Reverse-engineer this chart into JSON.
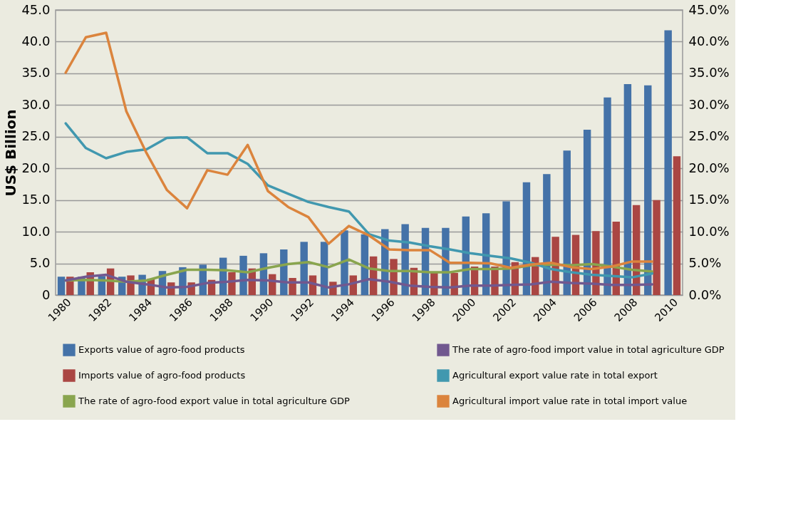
{
  "chart_data": {
    "type": "bar",
    "ylabel": "US$ Billion",
    "categories": [
      "1980",
      null,
      "1982",
      null,
      "1984",
      null,
      "1986",
      null,
      "1988",
      null,
      "1990",
      null,
      "1992",
      null,
      "1994",
      null,
      "1996",
      null,
      "1998",
      null,
      "2000",
      null,
      "2002",
      null,
      "2004",
      null,
      "2006",
      null,
      "2008",
      null,
      "2010"
    ],
    "series": [
      {
        "name": "Exports value of agro-food products",
        "color": "#4472a8",
        "values": [
          2.9,
          2.9,
          3.0,
          2.9,
          3.2,
          3.8,
          4.4,
          4.8,
          5.9,
          6.2,
          6.6,
          7.2,
          8.4,
          8.4,
          10.2,
          9.6,
          10.4,
          11.2,
          10.6,
          10.6,
          12.4,
          12.9,
          14.8,
          17.8,
          19.1,
          22.8,
          26.1,
          31.2,
          33.3,
          33.1,
          41.8
        ]
      },
      {
        "name": "Imports value of agro-food products",
        "color": "#aa4643",
        "values": [
          2.9,
          3.6,
          4.2,
          3.1,
          2.6,
          2.0,
          2.0,
          2.4,
          3.6,
          4.2,
          3.3,
          2.7,
          3.1,
          2.1,
          3.1,
          6.1,
          5.7,
          4.3,
          3.5,
          3.5,
          4.5,
          4.5,
          5.2,
          6.0,
          9.2,
          9.5,
          10.1,
          11.6,
          14.2,
          15.0,
          21.9
        ]
      },
      {
        "name": "The rate of agro-food export value in total agriculture GDP",
        "color": "#89a54e",
        "type": "line",
        "axis": "y2",
        "values": [
          2.3,
          2.4,
          2.3,
          2.1,
          2.3,
          3.2,
          4.0,
          4.0,
          3.9,
          3.6,
          4.3,
          4.9,
          5.2,
          4.4,
          5.6,
          4.2,
          3.8,
          3.8,
          3.6,
          3.6,
          4.1,
          4.1,
          4.2,
          4.7,
          4.8,
          4.7,
          4.9,
          4.5,
          4.0,
          3.7,
          null
        ]
      },
      {
        "name": "The rate of agro-food import value in total agriculture GDP",
        "color": "#71588f",
        "type": "line",
        "axis": "y2",
        "values": [
          2.3,
          2.9,
          3.2,
          2.1,
          1.7,
          1.2,
          1.3,
          1.9,
          2.1,
          2.4,
          2.3,
          2.0,
          2.0,
          1.2,
          1.7,
          2.5,
          2.1,
          1.5,
          1.3,
          1.2,
          1.5,
          1.5,
          1.6,
          1.7,
          2.1,
          1.9,
          1.8,
          1.6,
          1.6,
          1.7,
          null
        ]
      },
      {
        "name": "Agricultural export value rate in total export",
        "color": "#4198af",
        "type": "line",
        "axis": "y2",
        "values": [
          27.1,
          23.2,
          21.6,
          22.6,
          23.0,
          24.8,
          24.9,
          22.4,
          22.4,
          20.7,
          17.3,
          16.0,
          14.7,
          13.9,
          13.2,
          9.6,
          8.6,
          8.3,
          7.7,
          7.2,
          6.6,
          6.2,
          5.8,
          5.1,
          4.1,
          3.6,
          3.2,
          3.0,
          2.8,
          3.4,
          null
        ]
      },
      {
        "name": "Agricultural import value rate in total import value",
        "color": "#db843d",
        "type": "line",
        "axis": "y2",
        "values": [
          35.1,
          40.7,
          41.4,
          29.0,
          22.4,
          16.6,
          13.7,
          19.7,
          19.0,
          23.7,
          16.4,
          13.9,
          12.3,
          8.1,
          10.9,
          9.4,
          7.2,
          7.1,
          7.1,
          5.1,
          5.1,
          5.0,
          4.3,
          4.8,
          5.1,
          4.4,
          4.1,
          4.5,
          5.3,
          5.3,
          null
        ]
      }
    ],
    "ylim": [
      0,
      45
    ],
    "yticks": [
      {
        "value": 0,
        "label": "0"
      },
      {
        "value": 5,
        "label": "5.0"
      },
      {
        "value": 10,
        "label": "10.0"
      },
      {
        "value": 15,
        "label": "15.0"
      },
      {
        "value": 20,
        "label": "20.0"
      },
      {
        "value": 25,
        "label": "25.0"
      },
      {
        "value": 30,
        "label": "30.0"
      },
      {
        "value": 35,
        "label": "35.0"
      },
      {
        "value": 40,
        "label": "40.0"
      },
      {
        "value": 45,
        "label": "45.0"
      }
    ],
    "y2lim": [
      0,
      45
    ],
    "y2ticks": [
      {
        "value": 0,
        "label": "0.0%"
      },
      {
        "value": 5,
        "label": "5.0%"
      },
      {
        "value": 10,
        "label": "10.0%"
      },
      {
        "value": 15,
        "label": "15.0%"
      },
      {
        "value": 20,
        "label": "20.0%"
      },
      {
        "value": 25,
        "label": "25.0%"
      },
      {
        "value": 30,
        "label": "30.0%"
      },
      {
        "value": 35,
        "label": "35.0%"
      },
      {
        "value": 40,
        "label": "40.0%"
      },
      {
        "value": 45,
        "label": "45.0%"
      }
    ],
    "grid": "y",
    "legend": "bottom"
  }
}
